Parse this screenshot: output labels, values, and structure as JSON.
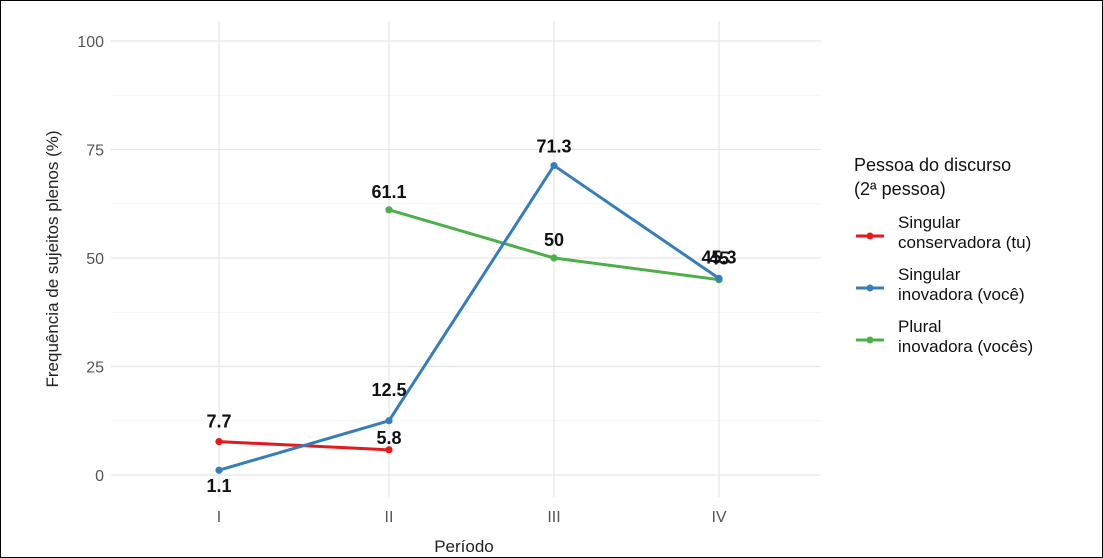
{
  "chart_data": {
    "type": "line",
    "title": "",
    "xlabel": "Período",
    "ylabel": "Frequência de sujeitos plenos (%)",
    "categories": [
      "I",
      "II",
      "III",
      "IV"
    ],
    "yticks": [
      "0",
      "25",
      "50",
      "75",
      "100"
    ],
    "ylim": [
      0,
      100
    ],
    "grid": true,
    "legend": {
      "title_line1": "Pessoa do discurso",
      "title_line2": "(2ª pessoa)",
      "placement": "right"
    },
    "series": [
      {
        "name_line1": "Singular",
        "name_line2": "conservadora (tu)",
        "color": "#e41a1c",
        "values": [
          7.7,
          5.8,
          null,
          null
        ],
        "labels": [
          "7.7",
          "5.8",
          "",
          ""
        ]
      },
      {
        "name_line1": "Singular",
        "name_line2": "inovadora (você)",
        "color": "#377eb8",
        "values": [
          1.1,
          12.5,
          71.3,
          45.3
        ],
        "labels": [
          "1.1",
          "12.5",
          "71.3",
          "45.3"
        ]
      },
      {
        "name_line1": "Plural",
        "name_line2": "inovadora (vocês)",
        "color": "#4daf4a",
        "values": [
          null,
          61.1,
          50,
          45
        ],
        "labels": [
          "",
          "61.1",
          "50",
          "45"
        ]
      }
    ]
  }
}
